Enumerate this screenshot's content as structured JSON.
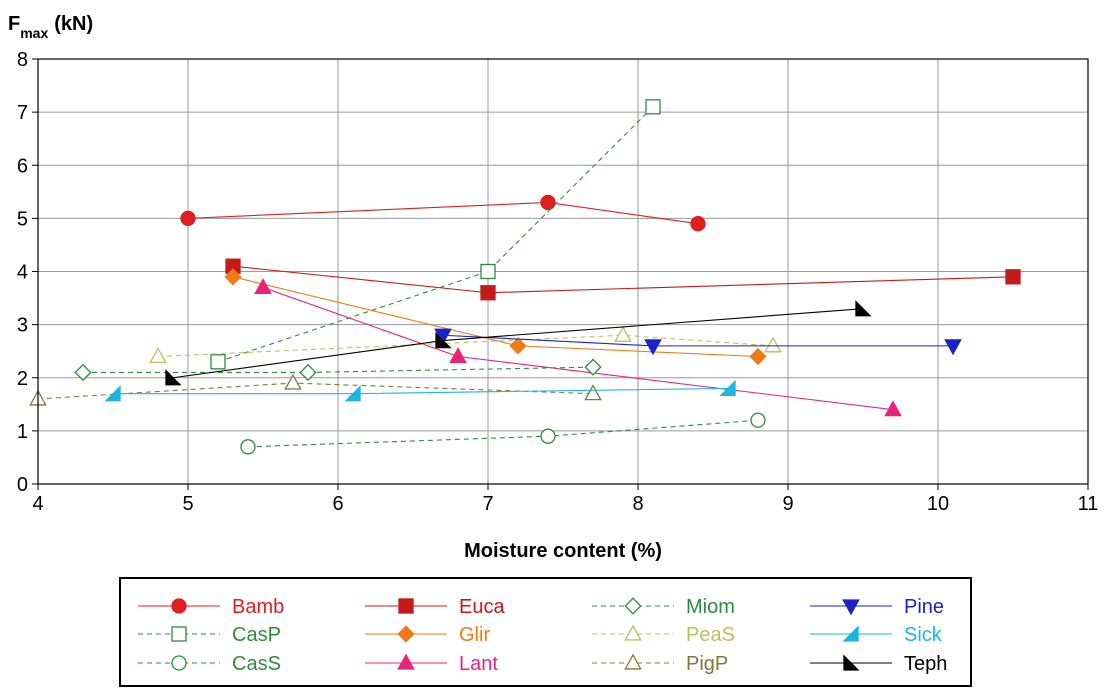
{
  "chart_data": {
    "type": "scatter",
    "title": "",
    "ylabel": "F",
    "ylabel_sub": "max",
    "ylabel_unit": "(kN)",
    "xlabel": "Moisture content (%)",
    "xlim": [
      4,
      11
    ],
    "ylim": [
      0,
      8
    ],
    "xticks": [
      "4",
      "5",
      "6",
      "7",
      "8",
      "9",
      "10",
      "11"
    ],
    "yticks": [
      "0",
      "1",
      "2",
      "3",
      "4",
      "5",
      "6",
      "7",
      "8"
    ],
    "grid": true,
    "legend_position": "bottom",
    "series": [
      {
        "name": "Bamb",
        "color": "#dd1f1f",
        "dash": "solid",
        "marker": "circle",
        "fill": "filled",
        "x": [
          5.0,
          7.4,
          8.4
        ],
        "y": [
          5.0,
          5.3,
          4.9
        ]
      },
      {
        "name": "CasP",
        "color": "#2e8b3e",
        "dash": "dashed",
        "marker": "square",
        "fill": "open",
        "x": [
          5.2,
          7.0,
          8.1
        ],
        "y": [
          2.3,
          4.0,
          7.1
        ]
      },
      {
        "name": "CasS",
        "color": "#2e8b3e",
        "dash": "dashed",
        "marker": "circle",
        "fill": "open",
        "x": [
          5.4,
          7.4,
          8.8
        ],
        "y": [
          0.7,
          0.9,
          1.2
        ]
      },
      {
        "name": "Euca",
        "color": "#c41a1a",
        "dash": "solid",
        "marker": "square",
        "fill": "filled",
        "x": [
          5.3,
          7.0,
          10.5
        ],
        "y": [
          4.1,
          3.6,
          3.9
        ]
      },
      {
        "name": "Glir",
        "color": "#f07a16",
        "dash": "solid",
        "marker": "diamond",
        "fill": "filled",
        "x": [
          5.3,
          7.2,
          8.8
        ],
        "y": [
          3.9,
          2.6,
          2.4
        ]
      },
      {
        "name": "Lant",
        "color": "#e8247a",
        "dash": "solid",
        "marker": "triangle",
        "fill": "filled",
        "x": [
          5.5,
          6.8,
          9.7
        ],
        "y": [
          3.7,
          2.4,
          1.4
        ]
      },
      {
        "name": "Miom",
        "color": "#2e8b3e",
        "dash": "dashed",
        "marker": "diamond",
        "fill": "open",
        "x": [
          4.3,
          5.8,
          7.7
        ],
        "y": [
          2.1,
          2.1,
          2.2
        ]
      },
      {
        "name": "PeaS",
        "color": "#b9c25a",
        "dash": "dashed",
        "marker": "triangle",
        "fill": "open",
        "x": [
          4.8,
          7.9,
          8.9
        ],
        "y": [
          2.4,
          2.8,
          2.6
        ]
      },
      {
        "name": "PigP",
        "color": "#7f7a3a",
        "dash": "dashed",
        "marker": "triangle",
        "fill": "open",
        "x": [
          4.0,
          5.7,
          7.7
        ],
        "y": [
          1.6,
          1.9,
          1.7
        ]
      },
      {
        "name": "Pine",
        "color": "#1a22c8",
        "dash": "solid",
        "marker": "triangle-down",
        "fill": "filled",
        "x": [
          6.7,
          8.1,
          10.1
        ],
        "y": [
          2.8,
          2.6,
          2.6
        ]
      },
      {
        "name": "Sick",
        "color": "#1cb6e0",
        "dash": "solid",
        "marker": "half-triangle-right",
        "fill": "filled",
        "x": [
          4.5,
          6.1,
          8.6
        ],
        "y": [
          1.7,
          1.7,
          1.8
        ]
      },
      {
        "name": "Teph",
        "color": "#000000",
        "dash": "solid",
        "marker": "half-triangle-left",
        "fill": "filled",
        "x": [
          4.9,
          6.7,
          9.5
        ],
        "y": [
          2.0,
          2.7,
          3.3
        ]
      }
    ],
    "legend_order": [
      [
        "Bamb",
        "Euca",
        "Miom",
        "Pine"
      ],
      [
        "CasP",
        "Glir",
        "PeaS",
        "Sick"
      ],
      [
        "CasS",
        "Lant",
        "PigP",
        "Teph"
      ]
    ]
  }
}
